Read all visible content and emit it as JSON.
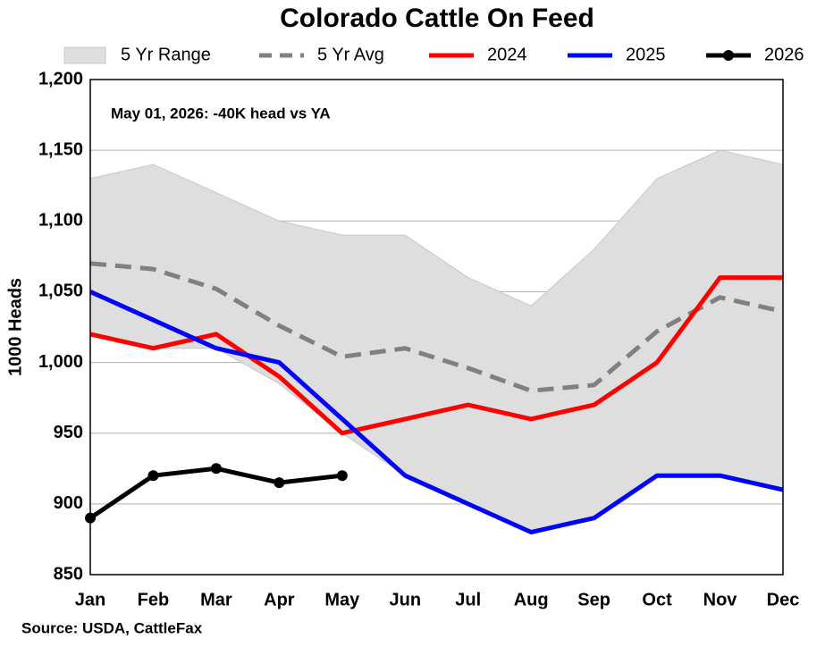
{
  "chart_data": {
    "type": "line",
    "title": "Colorado Cattle On Feed",
    "y_label": "1000 Heads",
    "annotation": "May 01, 2026: -40K head vs YA",
    "source": "Source: USDA, CattleFax",
    "categories": [
      "Jan",
      "Feb",
      "Mar",
      "Apr",
      "May",
      "Jun",
      "Jul",
      "Aug",
      "Sep",
      "Oct",
      "Nov",
      "Dec"
    ],
    "ylim": [
      850,
      1200
    ],
    "yticks": [
      850,
      900,
      950,
      {
        "value": 1000,
        "label": "1,000"
      },
      {
        "value": 1050,
        "label": "1,050"
      },
      {
        "value": 1100,
        "label": "1,100"
      },
      {
        "value": 1150,
        "label": "1,150"
      },
      {
        "value": 1200,
        "label": "1,200"
      }
    ],
    "grid": true,
    "series": [
      {
        "name": "5 Yr Range",
        "color": "#dedede",
        "kind": "range",
        "high": [
          1130,
          1140,
          1120,
          1100,
          1090,
          1090,
          1060,
          1040,
          1080,
          1130,
          1150,
          1140
        ],
        "low": [
          1020,
          1010,
          1010,
          985,
          950,
          920,
          900,
          880,
          890,
          920,
          920,
          910
        ]
      },
      {
        "name": "5 Yr Avg",
        "color": "#808080",
        "dash": true,
        "values": [
          1070,
          1066,
          1052,
          1026,
          1004,
          1010,
          996,
          980,
          984,
          1022,
          1046,
          1036
        ]
      },
      {
        "name": "2024",
        "color": "#ff0000",
        "values": [
          1020,
          1010,
          1020,
          990,
          950,
          960,
          970,
          960,
          970,
          1000,
          1060,
          1060
        ]
      },
      {
        "name": "2025",
        "color": "#0000ff",
        "values": [
          1050,
          1030,
          1010,
          1000,
          960,
          920,
          900,
          880,
          890,
          920,
          920,
          910
        ]
      },
      {
        "name": "2026",
        "color": "#000000",
        "markers": true,
        "values": [
          890,
          920,
          925,
          915,
          920,
          null,
          null,
          null,
          null,
          null,
          null,
          null
        ]
      }
    ]
  }
}
